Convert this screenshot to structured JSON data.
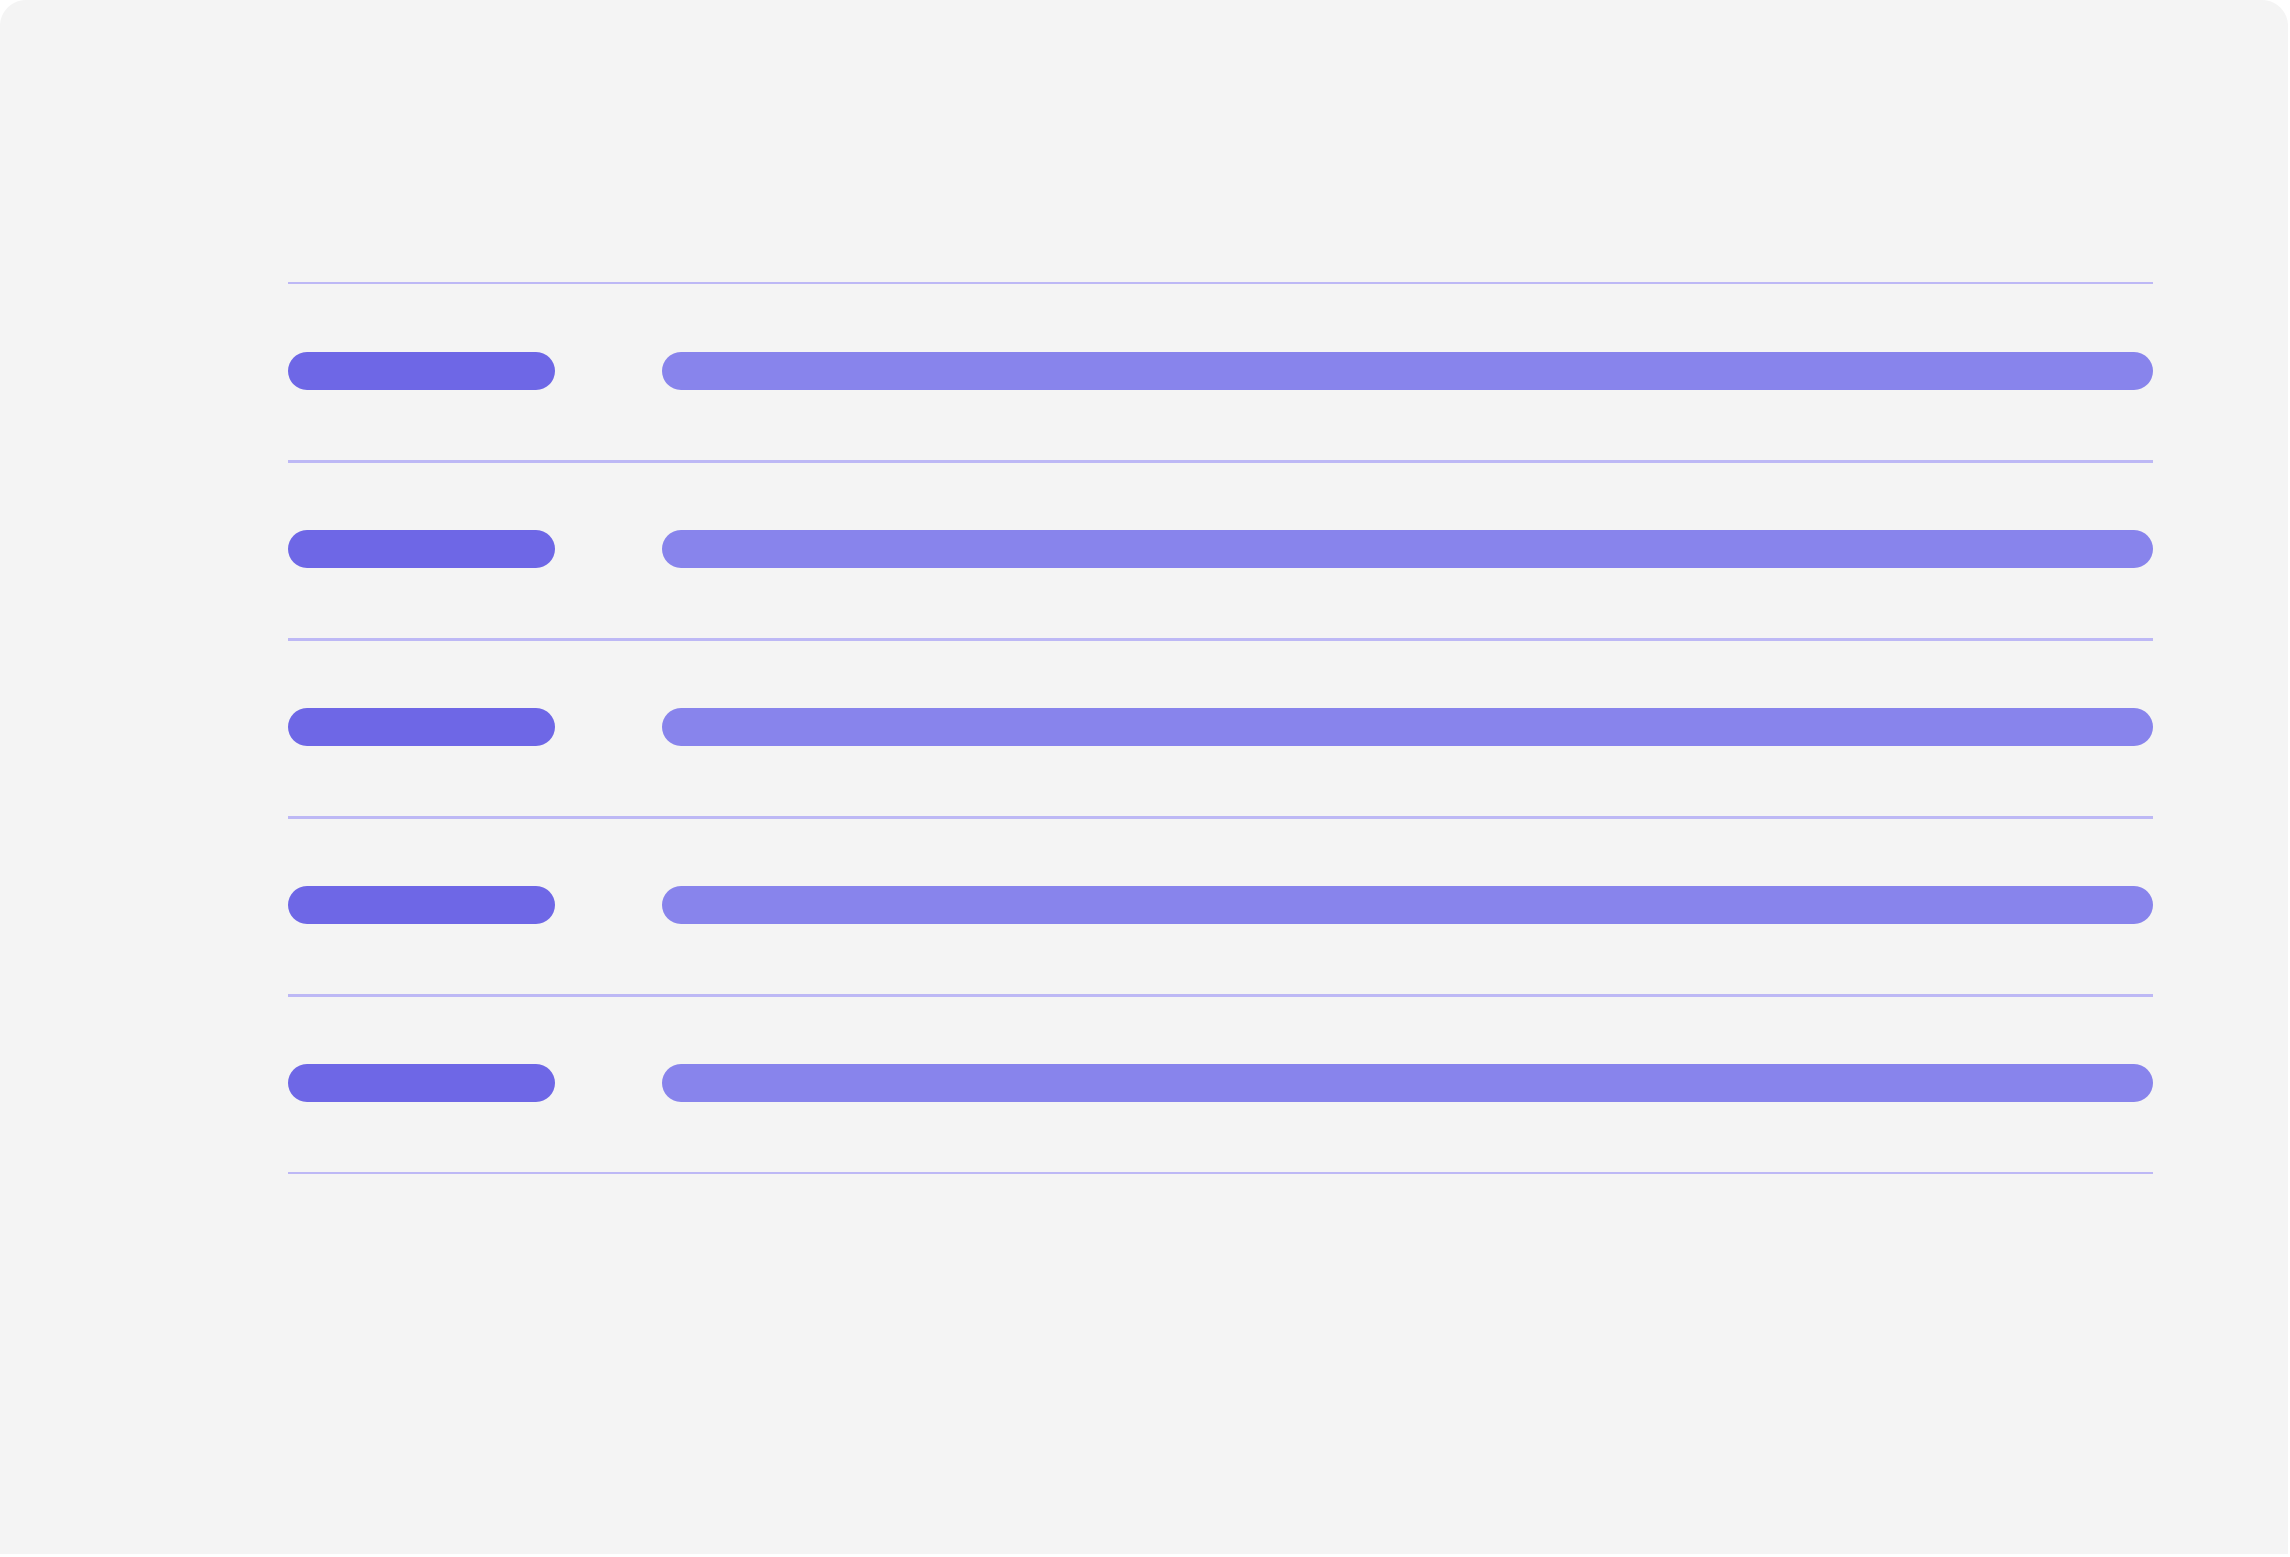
{
  "colors": {
    "background": "#f4f4f4",
    "key_bar": "#6e67e6",
    "value_bar": "#8884ec",
    "divider": "#bdb8f5"
  },
  "rows": [
    {
      "key": "",
      "value": ""
    },
    {
      "key": "",
      "value": ""
    },
    {
      "key": "",
      "value": ""
    },
    {
      "key": "",
      "value": ""
    },
    {
      "key": "",
      "value": ""
    }
  ]
}
